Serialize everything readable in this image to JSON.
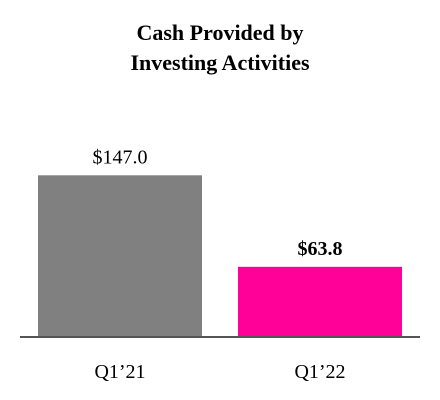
{
  "chart_data": {
    "type": "bar",
    "title": "Cash Provided by Investing Activities",
    "categories": [
      "Q1’21",
      "Q1’22"
    ],
    "values": [
      147.0,
      63.8
    ],
    "value_labels": [
      "$147.0",
      "$63.8"
    ],
    "colors": [
      "#808080",
      "#ff0099"
    ]
  }
}
